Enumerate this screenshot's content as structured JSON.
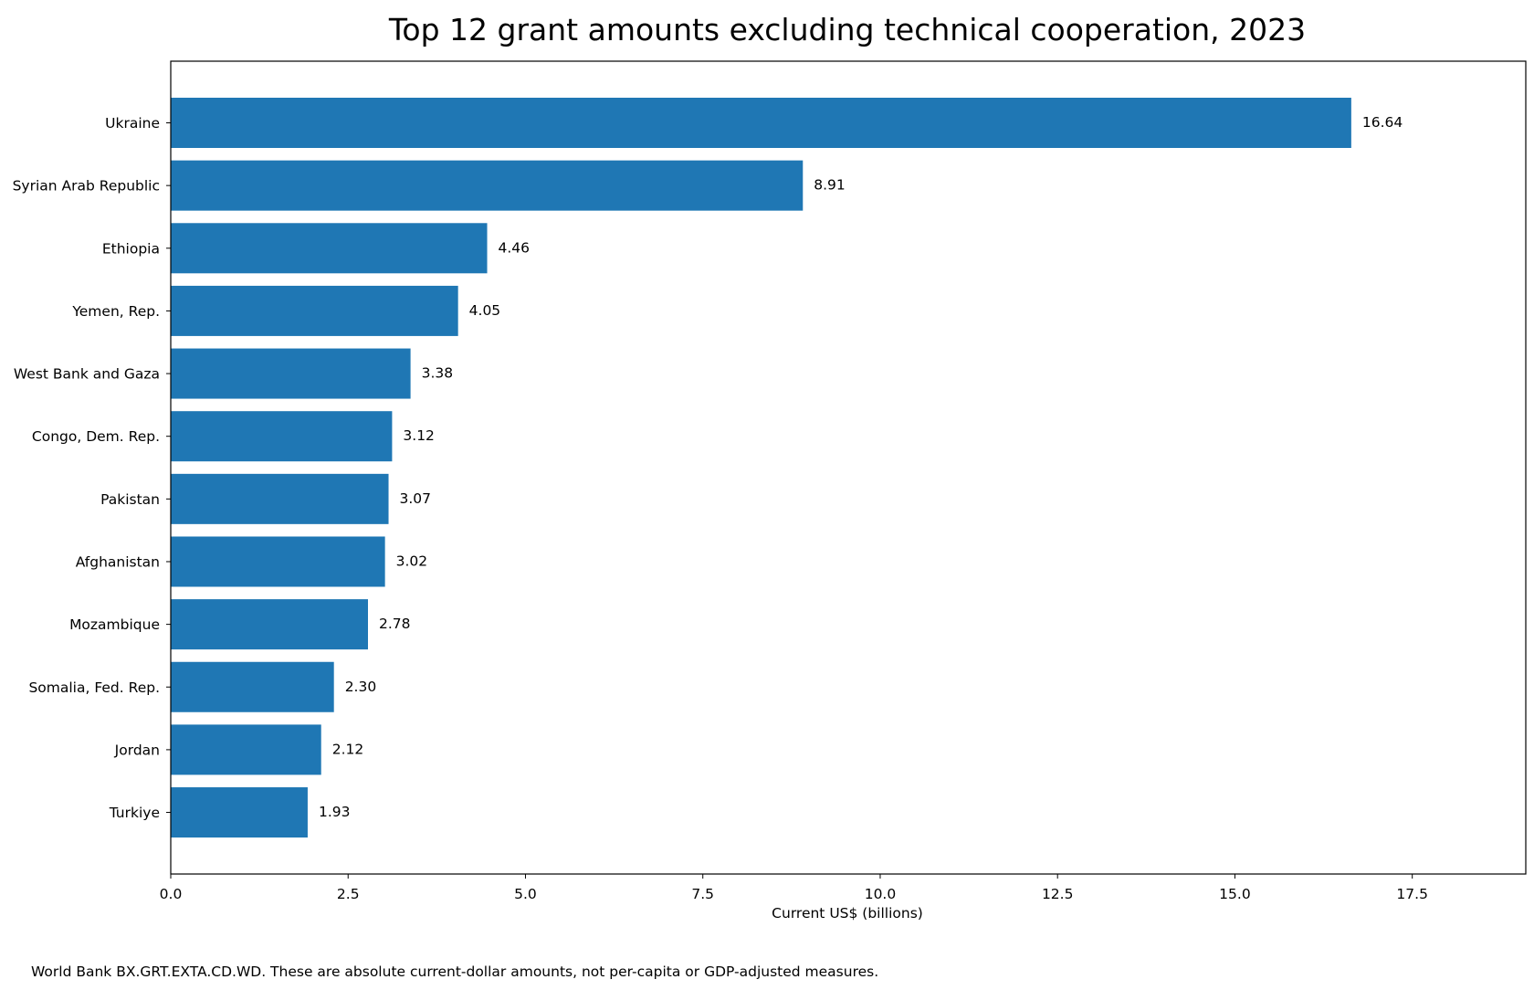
{
  "chart_data": {
    "type": "bar",
    "orientation": "horizontal",
    "title": "Top 12 grant amounts excluding technical cooperation, 2023",
    "xlabel": "Current US$ (billions)",
    "ylabel": "",
    "categories": [
      "Ukraine",
      "Syrian Arab Republic",
      "Ethiopia",
      "Yemen, Rep.",
      "West Bank and Gaza",
      "Congo, Dem. Rep.",
      "Pakistan",
      "Afghanistan",
      "Mozambique",
      "Somalia, Fed. Rep.",
      "Jordan",
      "Turkiye"
    ],
    "values": [
      16.64,
      8.91,
      4.46,
      4.05,
      3.38,
      3.12,
      3.07,
      3.02,
      2.78,
      2.3,
      2.12,
      1.93
    ],
    "data_labels": [
      "16.64",
      "8.91",
      "4.46",
      "4.05",
      "3.38",
      "3.12",
      "3.07",
      "3.02",
      "2.78",
      "2.30",
      "2.12",
      "1.93"
    ],
    "xlim": [
      0,
      19.1
    ],
    "xticks": [
      0,
      2.5,
      5.0,
      7.5,
      10.0,
      12.5,
      15.0,
      17.5
    ],
    "xtick_labels": [
      "0.0",
      "2.5",
      "5.0",
      "7.5",
      "10.0",
      "12.5",
      "15.0",
      "17.5"
    ],
    "grid": false,
    "bar_color": "#1f77b4"
  },
  "footnote": "World Bank BX.GRT.EXTA.CD.WD. These are absolute current-dollar amounts, not per-capita or GDP-adjusted measures."
}
